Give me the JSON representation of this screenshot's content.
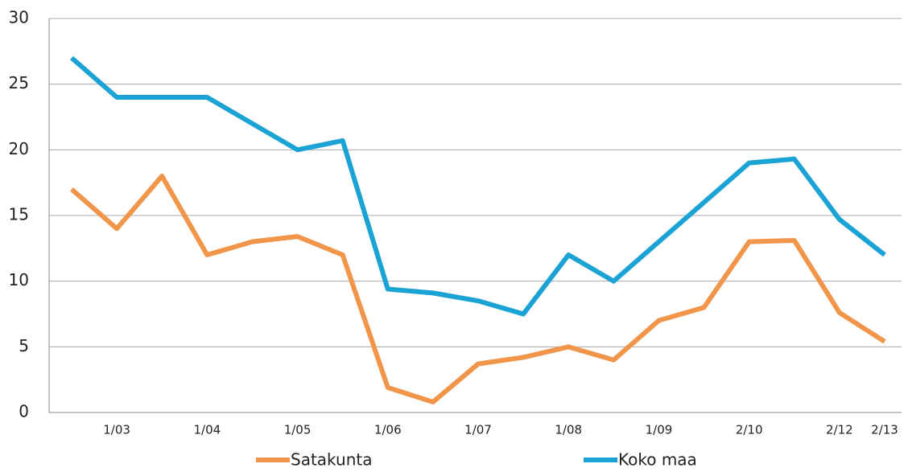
{
  "chart_data": {
    "type": "line",
    "categories": [
      null,
      "1/03",
      null,
      "1/04",
      null,
      "1/05",
      null,
      "1/06",
      null,
      "1/07",
      null,
      "1/08",
      null,
      "1/09",
      null,
      "2/10",
      null,
      "2/12",
      "2/13"
    ],
    "series": [
      {
        "name": "Satakunta",
        "color": "#f0954a",
        "values": [
          17,
          14,
          18,
          12,
          13,
          13.4,
          12,
          1.9,
          0.8,
          3.7,
          4.2,
          5,
          4,
          7,
          8,
          13,
          13.1,
          7.6,
          5.4
        ]
      },
      {
        "name": "Koko maa",
        "color": "#1aa3d4",
        "values": [
          27,
          24,
          24,
          24,
          22,
          20,
          20.7,
          9.4,
          9.1,
          8.5,
          7.5,
          12,
          10,
          13,
          16,
          19,
          19.3,
          14.7,
          12
        ]
      }
    ],
    "ylim": [
      0,
      30
    ],
    "yticks": [
      0,
      5,
      10,
      15,
      20,
      25,
      30
    ],
    "grid": true,
    "legend": "bottom"
  }
}
